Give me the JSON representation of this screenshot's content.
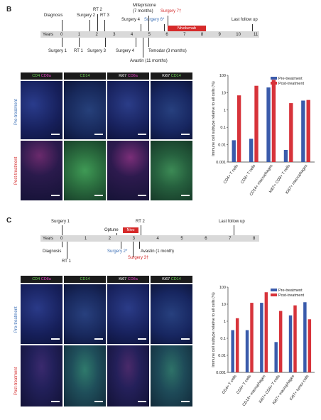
{
  "panelB": {
    "letter": "B",
    "axis": {
      "label": "Years",
      "ticks": [
        "0",
        "1",
        "2",
        "3",
        "4",
        "5",
        "6",
        "7",
        "8",
        "9",
        "10",
        "11"
      ]
    },
    "above_labels": [
      {
        "text": "Diagnosis",
        "color": "default"
      },
      {
        "text": "Surgery 2",
        "color": "default"
      },
      {
        "text": "RT 2",
        "color": "default"
      },
      {
        "text": "RT 3",
        "color": "default"
      },
      {
        "text": "Surgery 4",
        "color": "default"
      },
      {
        "text": "Mifepristone",
        "color": "default"
      },
      {
        "text": "(7 months)",
        "color": "default"
      },
      {
        "text": "Surgery 6*",
        "color": "blue"
      },
      {
        "text": "Surgery 7†",
        "color": "red"
      },
      {
        "text": "Last follow up",
        "color": "default"
      }
    ],
    "below_labels": [
      {
        "text": "Surgery 1"
      },
      {
        "text": "RT 1"
      },
      {
        "text": "Surgery 3"
      },
      {
        "text": "Surgery 4"
      },
      {
        "text": "Temodar (3 months)"
      },
      {
        "text": "Avastin (11 months)"
      }
    ],
    "treatment_box": "Nivolumab",
    "micro_headers": [
      {
        "a": "CD4",
        "b": "CD8a"
      },
      {
        "a": "CD14",
        "b": ""
      },
      {
        "a": "Ki67",
        "b": "CD8a"
      },
      {
        "a": "Ki67",
        "b": "CD14"
      }
    ],
    "row_labels": [
      "Pre-treatment",
      "Post-treatment"
    ]
  },
  "panelC": {
    "letter": "C",
    "axis": {
      "label": "Years",
      "ticks": [
        "0",
        "1",
        "2",
        "3",
        "4",
        "5",
        "6",
        "7",
        "8"
      ]
    },
    "above_labels": [
      {
        "text": "Surgery 1",
        "color": "default"
      },
      {
        "text": "Optune",
        "color": "default"
      },
      {
        "text": "RT 2",
        "color": "default"
      },
      {
        "text": "Last follow up",
        "color": "default"
      }
    ],
    "below_labels": [
      {
        "text": "Diagnosis",
        "color": "default"
      },
      {
        "text": "RT 1",
        "color": "default"
      },
      {
        "text": "Surgery 2*",
        "color": "blue"
      },
      {
        "text": "Avastin (1 month)",
        "color": "default"
      },
      {
        "text": "Surgery 3†",
        "color": "red"
      }
    ],
    "treatment_box": "Nivo",
    "micro_headers": [
      {
        "a": "CD4",
        "b": "CD8a"
      },
      {
        "a": "CD14",
        "b": ""
      },
      {
        "a": "Ki67",
        "b": "CD8a"
      },
      {
        "a": "Ki67",
        "b": "CD14"
      }
    ],
    "row_labels": [
      "Pre-treatment",
      "Post-treatment"
    ]
  },
  "colors": {
    "pre": "#3a5bab",
    "post": "#d7333a",
    "accent_red": "#d62a2a",
    "blue_text": "#3b6fb6"
  },
  "chart_data": [
    {
      "type": "bar",
      "ylabel": "Immune cell subtype relative to all cells (%)",
      "yscale": "log",
      "ylim": [
        0.001,
        100
      ],
      "yticks": [
        "0.001",
        "0.01",
        "0.1",
        "1",
        "10",
        "100"
      ],
      "categories": [
        "CD4+ T cells",
        "CD8+ T cells",
        "CD14+ macrophages",
        "Ki67+ CD8+ T cells",
        "Ki67+ macrophages"
      ],
      "series": [
        {
          "name": "Pre-treatment",
          "values": [
            0.018,
            0.022,
            20,
            0.005,
            3.5
          ]
        },
        {
          "name": "Post-treatment",
          "values": [
            7,
            25,
            55,
            2.5,
            3.8
          ]
        }
      ],
      "legend": "top-right"
    },
    {
      "type": "bar",
      "ylabel": "Immune cell subtype relative to all cells (%)",
      "yscale": "log",
      "ylim": [
        0.001,
        100
      ],
      "yticks": [
        "0.001",
        "0.01",
        "0.1",
        "1",
        "10",
        "100"
      ],
      "categories": [
        "CD4+ T cells",
        "CD8+ T cells",
        "CD14+ macrophages",
        "Ki67+ CD8+ T cells",
        "Ki67+ macrophages",
        "Ki67+ tumor cells"
      ],
      "series": [
        {
          "name": "Pre-treatment",
          "values": [
            0.3,
            0.3,
            12,
            0.06,
            2.2,
            13
          ]
        },
        {
          "name": "Post-treatment",
          "values": [
            1.5,
            12,
            50,
            4,
            8.5,
            1.3
          ]
        }
      ],
      "legend": "top-right"
    }
  ]
}
